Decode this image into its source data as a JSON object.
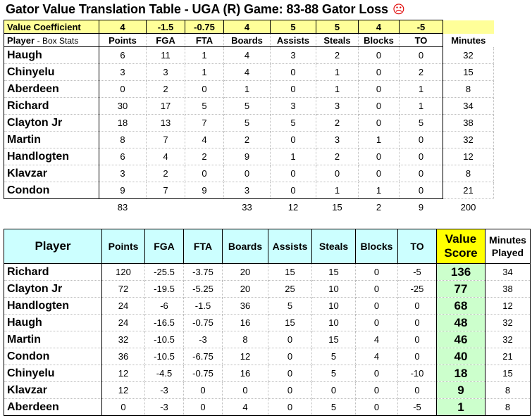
{
  "title": "Gator Value Translation Table - UGA (R) Game: 83-88 Gator Loss",
  "title_icon": "frown-icon",
  "title_icon_glyph": "☹",
  "top_table": {
    "coef_label": "Value Coefficient",
    "coefficients": [
      "4",
      "-1.5",
      "-0.75",
      "4",
      "5",
      "5",
      "4",
      "-5"
    ],
    "header_player": "Player",
    "header_player_sub": "- Box Stats",
    "columns": [
      "Points",
      "FGA",
      "FTA",
      "Boards",
      "Assists",
      "Steals",
      "Blocks",
      "TO"
    ],
    "minutes_label": "Minutes",
    "rows": [
      {
        "name": "Haugh",
        "stats": [
          "6",
          "11",
          "1",
          "4",
          "3",
          "2",
          "0",
          "0"
        ],
        "minutes": "32"
      },
      {
        "name": "Chinyelu",
        "stats": [
          "3",
          "3",
          "1",
          "4",
          "0",
          "1",
          "0",
          "2"
        ],
        "minutes": "15"
      },
      {
        "name": "Aberdeen",
        "stats": [
          "0",
          "2",
          "0",
          "1",
          "0",
          "1",
          "0",
          "1"
        ],
        "minutes": "8"
      },
      {
        "name": "Richard",
        "stats": [
          "30",
          "17",
          "5",
          "5",
          "3",
          "3",
          "0",
          "1"
        ],
        "minutes": "34"
      },
      {
        "name": "Clayton Jr",
        "stats": [
          "18",
          "13",
          "7",
          "5",
          "5",
          "2",
          "0",
          "5"
        ],
        "minutes": "38"
      },
      {
        "name": "Martin",
        "stats": [
          "8",
          "7",
          "4",
          "2",
          "0",
          "3",
          "1",
          "0"
        ],
        "minutes": "32"
      },
      {
        "name": "Handlogten",
        "stats": [
          "6",
          "4",
          "2",
          "9",
          "1",
          "2",
          "0",
          "0"
        ],
        "minutes": "12"
      },
      {
        "name": "Klavzar",
        "stats": [
          "3",
          "2",
          "0",
          "0",
          "0",
          "0",
          "0",
          "0"
        ],
        "minutes": "8"
      },
      {
        "name": "Condon",
        "stats": [
          "9",
          "7",
          "9",
          "3",
          "0",
          "1",
          "1",
          "0"
        ],
        "minutes": "21"
      }
    ],
    "totals": [
      "83",
      "",
      "",
      "33",
      "12",
      "15",
      "2",
      "9"
    ],
    "total_minutes": "200"
  },
  "bottom_table": {
    "header_player": "Player",
    "columns": [
      "Points",
      "FGA",
      "FTA",
      "Boards",
      "Assists",
      "Steals",
      "Blocks",
      "TO"
    ],
    "value_label_1": "Value",
    "value_label_2": "Score",
    "minutes_label_1": "Minutes",
    "minutes_label_2": "Played",
    "rows": [
      {
        "name": "Richard",
        "vals": [
          "120",
          "-25.5",
          "-3.75",
          "20",
          "15",
          "15",
          "0",
          "-5"
        ],
        "score": "136",
        "minutes": "34"
      },
      {
        "name": "Clayton Jr",
        "vals": [
          "72",
          "-19.5",
          "-5.25",
          "20",
          "25",
          "10",
          "0",
          "-25"
        ],
        "score": "77",
        "minutes": "38"
      },
      {
        "name": "Handlogten",
        "vals": [
          "24",
          "-6",
          "-1.5",
          "36",
          "5",
          "10",
          "0",
          "0"
        ],
        "score": "68",
        "minutes": "12"
      },
      {
        "name": "Haugh",
        "vals": [
          "24",
          "-16.5",
          "-0.75",
          "16",
          "15",
          "10",
          "0",
          "0"
        ],
        "score": "48",
        "minutes": "32"
      },
      {
        "name": "Martin",
        "vals": [
          "32",
          "-10.5",
          "-3",
          "8",
          "0",
          "15",
          "4",
          "0"
        ],
        "score": "46",
        "minutes": "32"
      },
      {
        "name": "Condon",
        "vals": [
          "36",
          "-10.5",
          "-6.75",
          "12",
          "0",
          "5",
          "4",
          "0"
        ],
        "score": "40",
        "minutes": "21"
      },
      {
        "name": "Chinyelu",
        "vals": [
          "12",
          "-4.5",
          "-0.75",
          "16",
          "0",
          "5",
          "0",
          "-10"
        ],
        "score": "18",
        "minutes": "15"
      },
      {
        "name": "Klavzar",
        "vals": [
          "12",
          "-3",
          "0",
          "0",
          "0",
          "0",
          "0",
          "0"
        ],
        "score": "9",
        "minutes": "8"
      },
      {
        "name": "Aberdeen",
        "vals": [
          "0",
          "-3",
          "0",
          "4",
          "0",
          "5",
          "0",
          "-5"
        ],
        "score": "1",
        "minutes": "8"
      }
    ]
  }
}
